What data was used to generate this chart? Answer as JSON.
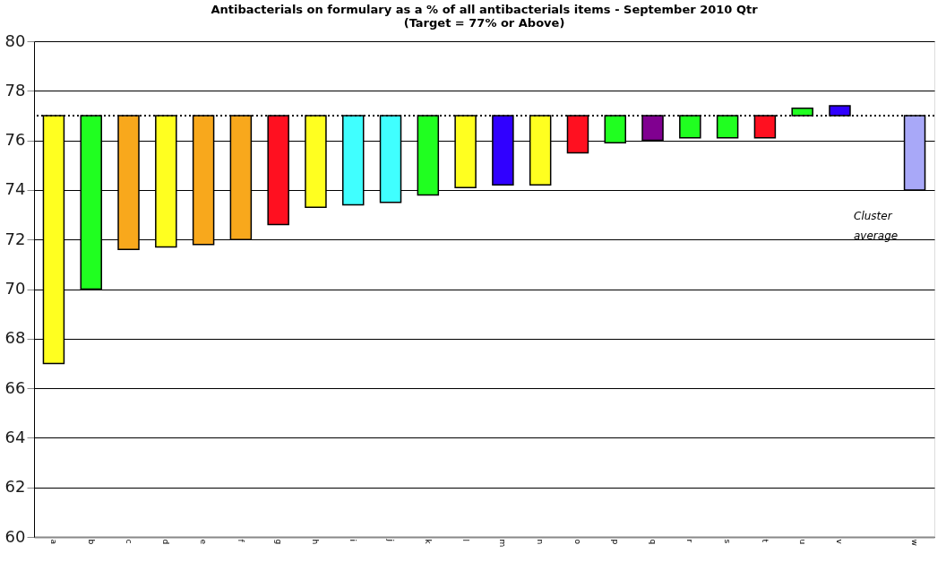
{
  "chart_data": {
    "type": "bar",
    "title": "Antibacterials on formulary as a % of all antibacterials items - September 2010 Qtr",
    "subtitle": "(Target = 77% or Above)",
    "categories": [
      "a",
      "b",
      "c",
      "d",
      "e",
      "f",
      "g",
      "h",
      "i",
      "j",
      "k",
      "l",
      "m",
      "n",
      "o",
      "p",
      "q",
      "r",
      "s",
      "t",
      "u",
      "v",
      null,
      "w"
    ],
    "base": [
      77,
      77,
      77,
      77,
      77,
      77,
      77,
      77,
      77,
      77,
      77,
      77,
      77,
      77,
      77,
      77,
      77,
      77,
      77,
      77,
      77,
      77,
      null,
      77
    ],
    "values": [
      -10.0,
      -7.0,
      -5.4,
      -5.3,
      -5.2,
      -5.0,
      -4.4,
      -3.7,
      -3.6,
      -3.5,
      -3.2,
      -2.9,
      -2.8,
      -2.8,
      -1.5,
      -1.1,
      -1.0,
      -0.9,
      -0.9,
      -0.9,
      0.3,
      0.4,
      null,
      -3.0
    ],
    "colors": [
      "#ffff20",
      "#20ff20",
      "#f8a81c",
      "#ffff20",
      "#f8a81c",
      "#f8a81c",
      "#ff1020",
      "#ffff20",
      "#40ffff",
      "#40ffff",
      "#20ff20",
      "#ffff20",
      "#3000ff",
      "#ffff20",
      "#ff1020",
      "#20ff20",
      "#800090",
      "#20ff20",
      "#20ff20",
      "#ff1020",
      "#20ff20",
      "#3000ff",
      "#ffffff",
      "#a8a8f8"
    ],
    "ylim": [
      60,
      80
    ],
    "yticks": [
      60,
      62,
      64,
      66,
      68,
      70,
      72,
      74,
      76,
      78,
      80
    ],
    "grid": "y",
    "ref_lines": [
      {
        "axis": "y",
        "value": 77,
        "line_style": "dotted",
        "color": "#000000"
      }
    ],
    "annotations": [
      "Cluster average"
    ]
  }
}
